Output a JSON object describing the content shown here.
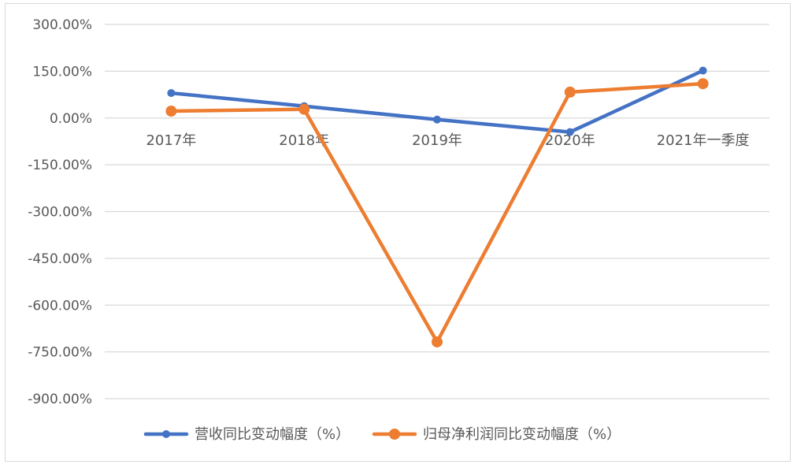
{
  "chart_data": {
    "type": "line",
    "title": "",
    "xlabel": "",
    "ylabel": "",
    "categories": [
      "2017年",
      "2018年",
      "2019年",
      "2020年",
      "2021年一季度"
    ],
    "ylim": [
      -900,
      300
    ],
    "yticks": [
      300,
      150,
      0,
      -150,
      -300,
      -450,
      -600,
      -750,
      -900
    ],
    "ytick_labels": [
      "300.00%",
      "150.00%",
      "0.00%",
      "-150.00%",
      "-300.00%",
      "-450.00%",
      "-600.00%",
      "-750.00%",
      "-900.00%"
    ],
    "grid": true,
    "legend_position": "bottom",
    "series": [
      {
        "name": "营收同比变动幅度（%）",
        "color": "#4472c4",
        "values": [
          80,
          38,
          -5,
          -45,
          152
        ]
      },
      {
        "name": "归母净利润同比变动幅度（%）",
        "color": "#ed7d31",
        "values": [
          22,
          28,
          -718,
          83,
          110
        ]
      }
    ]
  }
}
